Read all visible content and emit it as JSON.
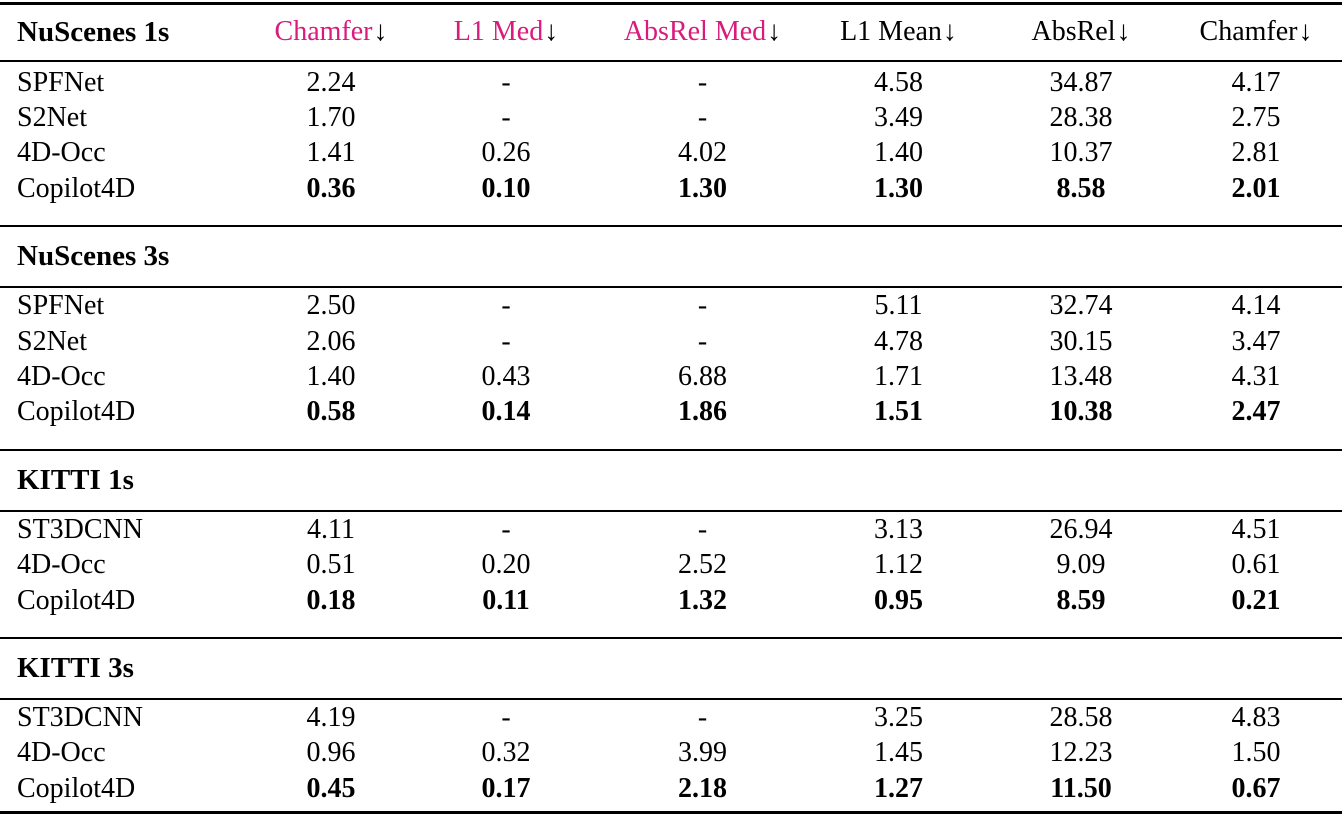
{
  "accent_color": "#d81b7c",
  "header": {
    "metrics": [
      {
        "label": "Chamfer",
        "arrow": "↓",
        "accent": true
      },
      {
        "label": "L1 Med",
        "arrow": "↓",
        "accent": true
      },
      {
        "label": "AbsRel Med",
        "arrow": "↓",
        "accent": true
      },
      {
        "label": "L1 Mean",
        "arrow": "↓",
        "accent": false
      },
      {
        "label": "AbsRel",
        "arrow": "↓",
        "accent": false
      },
      {
        "label": "Chamfer",
        "arrow": "↓",
        "accent": false
      }
    ]
  },
  "sections": [
    {
      "title": "NuScenes 1s",
      "rows": [
        {
          "model": "SPFNet",
          "bold": false,
          "values": [
            "2.24",
            "-",
            "-",
            "4.58",
            "34.87",
            "4.17"
          ]
        },
        {
          "model": "S2Net",
          "bold": false,
          "values": [
            "1.70",
            "-",
            "-",
            "3.49",
            "28.38",
            "2.75"
          ]
        },
        {
          "model": "4D-Occ",
          "bold": false,
          "values": [
            "1.41",
            "0.26",
            "4.02",
            "1.40",
            "10.37",
            "2.81"
          ]
        },
        {
          "model": "Copilot4D",
          "bold": true,
          "values": [
            "0.36",
            "0.10",
            "1.30",
            "1.30",
            "8.58",
            "2.01"
          ]
        }
      ]
    },
    {
      "title": "NuScenes 3s",
      "rows": [
        {
          "model": "SPFNet",
          "bold": false,
          "values": [
            "2.50",
            "-",
            "-",
            "5.11",
            "32.74",
            "4.14"
          ]
        },
        {
          "model": "S2Net",
          "bold": false,
          "values": [
            "2.06",
            "-",
            "-",
            "4.78",
            "30.15",
            "3.47"
          ]
        },
        {
          "model": "4D-Occ",
          "bold": false,
          "values": [
            "1.40",
            "0.43",
            "6.88",
            "1.71",
            "13.48",
            "4.31"
          ]
        },
        {
          "model": "Copilot4D",
          "bold": true,
          "values": [
            "0.58",
            "0.14",
            "1.86",
            "1.51",
            "10.38",
            "2.47"
          ]
        }
      ]
    },
    {
      "title": "KITTI 1s",
      "rows": [
        {
          "model": "ST3DCNN",
          "bold": false,
          "values": [
            "4.11",
            "-",
            "-",
            "3.13",
            "26.94",
            "4.51"
          ]
        },
        {
          "model": "4D-Occ",
          "bold": false,
          "values": [
            "0.51",
            "0.20",
            "2.52",
            "1.12",
            "9.09",
            "0.61"
          ]
        },
        {
          "model": "Copilot4D",
          "bold": true,
          "values": [
            "0.18",
            "0.11",
            "1.32",
            "0.95",
            "8.59",
            "0.21"
          ]
        }
      ]
    },
    {
      "title": "KITTI 3s",
      "rows": [
        {
          "model": "ST3DCNN",
          "bold": false,
          "values": [
            "4.19",
            "-",
            "-",
            "3.25",
            "28.58",
            "4.83"
          ]
        },
        {
          "model": "4D-Occ",
          "bold": false,
          "values": [
            "0.96",
            "0.32",
            "3.99",
            "1.45",
            "12.23",
            "1.50"
          ]
        },
        {
          "model": "Copilot4D",
          "bold": true,
          "values": [
            "0.45",
            "0.17",
            "2.18",
            "1.27",
            "11.50",
            "0.67"
          ]
        }
      ]
    }
  ]
}
